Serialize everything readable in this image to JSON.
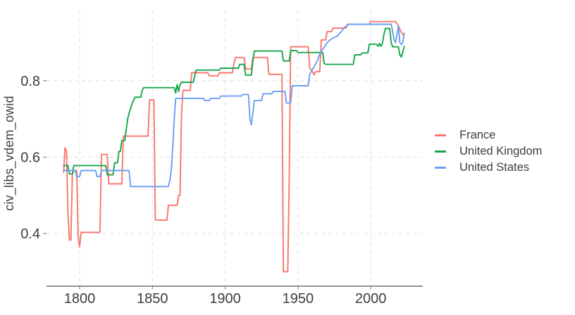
{
  "chart_data": {
    "type": "line",
    "title": "",
    "xlabel": "",
    "ylabel": "civ_libs_vdem_owid",
    "x_ticks": [
      1800,
      1850,
      1900,
      1950,
      2000
    ],
    "y_ticks": [
      0.4,
      0.6,
      0.8
    ],
    "xlim": [
      1777.25,
      2035.75
    ],
    "ylim": [
      0.262,
      0.984
    ],
    "grid": "dashed-major-only",
    "legend_position": "right",
    "series": [
      {
        "name": "France",
        "color": "#F8766D",
        "points": [
          [
            1789,
            0.56
          ],
          [
            1790,
            0.625
          ],
          [
            1791,
            0.615
          ],
          [
            1792,
            0.45
          ],
          [
            1793,
            0.383
          ],
          [
            1794,
            0.383
          ],
          [
            1795,
            0.555
          ],
          [
            1796,
            0.565
          ],
          [
            1798,
            0.565
          ],
          [
            1799,
            0.39
          ],
          [
            1800,
            0.365
          ],
          [
            1801,
            0.403
          ],
          [
            1814,
            0.403
          ],
          [
            1815,
            0.607
          ],
          [
            1819,
            0.607
          ],
          [
            1820,
            0.53
          ],
          [
            1829,
            0.53
          ],
          [
            1830,
            0.655
          ],
          [
            1847,
            0.655
          ],
          [
            1848,
            0.75
          ],
          [
            1851,
            0.75
          ],
          [
            1852,
            0.435
          ],
          [
            1860,
            0.435
          ],
          [
            1861,
            0.474
          ],
          [
            1867,
            0.474
          ],
          [
            1868,
            0.5
          ],
          [
            1869,
            0.5
          ],
          [
            1870,
            0.715
          ],
          [
            1871,
            0.775
          ],
          [
            1876,
            0.775
          ],
          [
            1877,
            0.821
          ],
          [
            1888,
            0.821
          ],
          [
            1889,
            0.813
          ],
          [
            1895,
            0.813
          ],
          [
            1896,
            0.821
          ],
          [
            1905,
            0.821
          ],
          [
            1906,
            0.845
          ],
          [
            1907,
            0.861
          ],
          [
            1913,
            0.861
          ],
          [
            1914,
            0.831
          ],
          [
            1918,
            0.831
          ],
          [
            1919,
            0.861
          ],
          [
            1929,
            0.861
          ],
          [
            1930,
            0.817
          ],
          [
            1939,
            0.817
          ],
          [
            1940,
            0.3
          ],
          [
            1943,
            0.3
          ],
          [
            1944,
            0.55
          ],
          [
            1945,
            0.889
          ],
          [
            1957,
            0.889
          ],
          [
            1958,
            0.834
          ],
          [
            1960,
            0.824
          ],
          [
            1961,
            0.815
          ],
          [
            1962,
            0.824
          ],
          [
            1965,
            0.824
          ],
          [
            1966,
            0.907
          ],
          [
            1969,
            0.907
          ],
          [
            1970,
            0.929
          ],
          [
            1973,
            0.929
          ],
          [
            1974,
            0.938
          ],
          [
            1983,
            0.938
          ],
          [
            1984,
            0.948
          ],
          [
            1999,
            0.948
          ],
          [
            2000,
            0.955
          ],
          [
            2017,
            0.955
          ],
          [
            2018,
            0.95
          ],
          [
            2019,
            0.944
          ],
          [
            2020,
            0.935
          ],
          [
            2021,
            0.927
          ],
          [
            2022,
            0.921
          ],
          [
            2023,
            0.92
          ]
        ]
      },
      {
        "name": "United Kingdom",
        "color": "#17A54A",
        "points": [
          [
            1789,
            0.578
          ],
          [
            1792,
            0.578
          ],
          [
            1793,
            0.556
          ],
          [
            1795,
            0.556
          ],
          [
            1796,
            0.578
          ],
          [
            1818,
            0.578
          ],
          [
            1819,
            0.554
          ],
          [
            1823,
            0.554
          ],
          [
            1824,
            0.585
          ],
          [
            1826,
            0.585
          ],
          [
            1827,
            0.615
          ],
          [
            1828,
            0.615
          ],
          [
            1829,
            0.643
          ],
          [
            1831,
            0.643
          ],
          [
            1832,
            0.672
          ],
          [
            1833,
            0.7
          ],
          [
            1834,
            0.715
          ],
          [
            1836,
            0.74
          ],
          [
            1838,
            0.757
          ],
          [
            1842,
            0.757
          ],
          [
            1843,
            0.775
          ],
          [
            1844,
            0.782
          ],
          [
            1865,
            0.782
          ],
          [
            1866,
            0.768
          ],
          [
            1867,
            0.79
          ],
          [
            1868,
            0.772
          ],
          [
            1869,
            0.79
          ],
          [
            1870,
            0.796
          ],
          [
            1878,
            0.796
          ],
          [
            1879,
            0.812
          ],
          [
            1880,
            0.828
          ],
          [
            1896,
            0.828
          ],
          [
            1897,
            0.833
          ],
          [
            1909,
            0.833
          ],
          [
            1910,
            0.843
          ],
          [
            1913,
            0.843
          ],
          [
            1914,
            0.815
          ],
          [
            1918,
            0.815
          ],
          [
            1919,
            0.852
          ],
          [
            1920,
            0.878
          ],
          [
            1939,
            0.878
          ],
          [
            1940,
            0.852
          ],
          [
            1944,
            0.852
          ],
          [
            1945,
            0.879
          ],
          [
            1949,
            0.879
          ],
          [
            1950,
            0.874
          ],
          [
            1967,
            0.874
          ],
          [
            1968,
            0.846
          ],
          [
            1969,
            0.843
          ],
          [
            1988,
            0.843
          ],
          [
            1989,
            0.868
          ],
          [
            1993,
            0.868
          ],
          [
            1994,
            0.873
          ],
          [
            1998,
            0.873
          ],
          [
            1999,
            0.896
          ],
          [
            2004,
            0.896
          ],
          [
            2005,
            0.89
          ],
          [
            2006,
            0.898
          ],
          [
            2007,
            0.89
          ],
          [
            2008,
            0.898
          ],
          [
            2009,
            0.92
          ],
          [
            2010,
            0.937
          ],
          [
            2013,
            0.937
          ],
          [
            2014,
            0.9
          ],
          [
            2015,
            0.889
          ],
          [
            2019,
            0.889
          ],
          [
            2020,
            0.868
          ],
          [
            2021,
            0.862
          ],
          [
            2022,
            0.875
          ],
          [
            2023,
            0.89
          ]
        ]
      },
      {
        "name": "United States",
        "color": "#6A9EF5",
        "points": [
          [
            1789,
            0.565
          ],
          [
            1797,
            0.565
          ],
          [
            1798,
            0.549
          ],
          [
            1800,
            0.549
          ],
          [
            1801,
            0.565
          ],
          [
            1811,
            0.565
          ],
          [
            1812,
            0.549
          ],
          [
            1814,
            0.549
          ],
          [
            1815,
            0.565
          ],
          [
            1834,
            0.565
          ],
          [
            1835,
            0.523
          ],
          [
            1861,
            0.523
          ],
          [
            1862,
            0.54
          ],
          [
            1863,
            0.565
          ],
          [
            1864,
            0.63
          ],
          [
            1865,
            0.7
          ],
          [
            1866,
            0.754
          ],
          [
            1885,
            0.754
          ],
          [
            1886,
            0.748
          ],
          [
            1889,
            0.748
          ],
          [
            1890,
            0.754
          ],
          [
            1896,
            0.754
          ],
          [
            1897,
            0.76
          ],
          [
            1911,
            0.76
          ],
          [
            1912,
            0.764
          ],
          [
            1916,
            0.764
          ],
          [
            1917,
            0.7
          ],
          [
            1918,
            0.685
          ],
          [
            1919,
            0.715
          ],
          [
            1920,
            0.748
          ],
          [
            1925,
            0.748
          ],
          [
            1926,
            0.766
          ],
          [
            1932,
            0.766
          ],
          [
            1933,
            0.772
          ],
          [
            1941,
            0.772
          ],
          [
            1942,
            0.742
          ],
          [
            1945,
            0.742
          ],
          [
            1946,
            0.787
          ],
          [
            1957,
            0.787
          ],
          [
            1958,
            0.816
          ],
          [
            1960,
            0.83
          ],
          [
            1963,
            0.85
          ],
          [
            1965,
            0.87
          ],
          [
            1968,
            0.888
          ],
          [
            1970,
            0.9
          ],
          [
            1973,
            0.91
          ],
          [
            1977,
            0.917
          ],
          [
            1980,
            0.93
          ],
          [
            1982,
            0.94
          ],
          [
            1985,
            0.948
          ],
          [
            2014,
            0.948
          ],
          [
            2015,
            0.93
          ],
          [
            2016,
            0.908
          ],
          [
            2017,
            0.9
          ],
          [
            2018,
            0.92
          ],
          [
            2019,
            0.944
          ],
          [
            2020,
            0.9
          ],
          [
            2021,
            0.895
          ],
          [
            2022,
            0.9
          ],
          [
            2023,
            0.925
          ]
        ]
      }
    ],
    "style_colors": {
      "gridline": "#e2e2e2",
      "axis_line": "#6f6f6f",
      "tick_mark": "#8c8c8c",
      "tick_label": "#3c3c3c",
      "background": "#ffffff"
    }
  }
}
